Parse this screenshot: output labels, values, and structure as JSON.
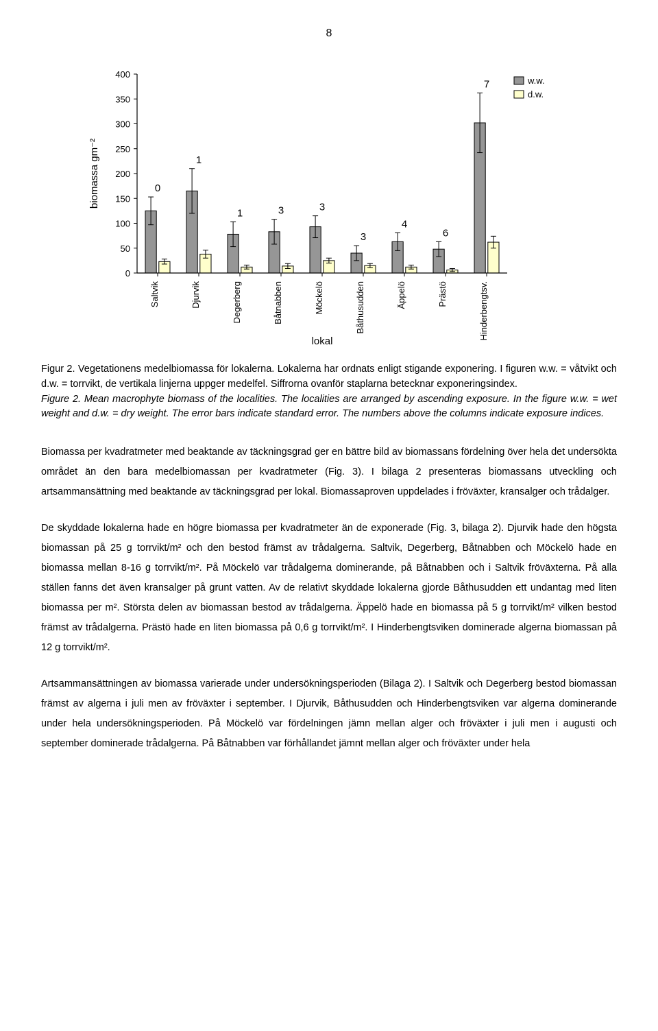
{
  "page_number": "8",
  "chart": {
    "type": "bar",
    "categories": [
      "Saltvik",
      "Djurvik",
      "Degerberg",
      "Båtnabben",
      "Möckelö",
      "Båthusudden",
      "Äppelö",
      "Prästö",
      "Hinderbengtsv."
    ],
    "series": [
      {
        "name": "w.w.",
        "color": "#969696",
        "values": [
          125,
          165,
          78,
          83,
          93,
          40,
          63,
          48,
          302
        ],
        "errors": [
          28,
          45,
          25,
          25,
          22,
          15,
          18,
          15,
          60
        ]
      },
      {
        "name": "d.w.",
        "color": "#ffffcc",
        "values": [
          23,
          38,
          12,
          14,
          25,
          15,
          12,
          6,
          62
        ],
        "errors": [
          5,
          8,
          4,
          5,
          5,
          4,
          4,
          3,
          12
        ]
      }
    ],
    "annotations": [
      "0",
      "1",
      "1",
      "3",
      "3",
      "3",
      "4",
      "6",
      "7"
    ],
    "ylim": [
      0,
      400
    ],
    "ytick_step": 50,
    "yticks": [
      "0",
      "50",
      "100",
      "150",
      "200",
      "250",
      "300",
      "350",
      "400"
    ],
    "xlabel": "lokal",
    "ylabel": "biomassa gm⁻²",
    "bar_color_fill": "#969696",
    "bar2_color_fill": "#ffffcc",
    "bar_stroke": "#000000",
    "background": "#ffffff",
    "axis_color": "#000000",
    "tick_fontsize": 13,
    "label_fontsize": 15,
    "annotation_fontsize": 15
  },
  "caption": {
    "sv_prefix": "Figur 2. Vegetationens medelbiomassa för lokalerna. Lokalerna har ordnats enligt stigande exponering. I figuren w.w. = våtvikt och d.w. = torrvikt, de vertikala linjerna uppger medelfel. Siffrorna ovanför staplarna betecknar exponeringsindex.",
    "en_italic": "Figure 2. Mean macrophyte biomass of the localities. The localities are arranged by ascending exposure. In the figure w.w. = wet weight and d.w. = dry weight. The error bars indicate standard error. The numbers above the columns indicate exposure indices."
  },
  "paragraphs": {
    "p1": "Biomassa per kvadratmeter med beaktande av täckningsgrad ger en bättre bild av biomassans fördelning över hela det undersökta området än den bara medelbiomassan per kvadratmeter (Fig. 3). I bilaga 2 presenteras biomassans utveckling och artsammansättning med beaktande av täckningsgrad per lokal. Biomassaproven uppdelades i fröväxter, kransalger och trådalger.",
    "p2": "De skyddade lokalerna hade en högre biomassa per kvadratmeter än de exponerade (Fig. 3, bilaga 2). Djurvik hade den högsta biomassan på 25 g torrvikt/m² och den bestod främst av trådalgerna. Saltvik, Degerberg, Båtnabben och Möckelö hade en biomassa mellan 8-16 g torrvikt/m². På Möckelö var trådalgerna dominerande, på Båtnabben och i Saltvik fröväxterna. På alla ställen fanns det även kransalger på grunt vatten. Av de relativt skyddade lokalerna gjorde Båthusudden ett undantag med liten biomassa per m². Största delen av biomassan bestod av trådalgerna. Äppelö hade en biomassa på 5 g torrvikt/m² vilken bestod främst av trådalgerna. Prästö hade en liten biomassa på 0,6 g torrvikt/m². I Hinderbengtsviken dominerade algerna biomassan på 12 g torrvikt/m².",
    "p3": "Artsammansättningen av biomassa varierade under undersökningsperioden (Bilaga 2). I Saltvik och Degerberg bestod biomassan främst av algerna i juli men av fröväxter i september. I Djurvik, Båthusudden och Hinderbengtsviken var algerna dominerande under hela undersökningsperioden. På Möckelö var fördelningen jämn mellan alger och fröväxter i juli men i augusti och september dominerade trådalgerna. På Båtnabben var förhållandet jämnt mellan alger och fröväxter under hela"
  }
}
